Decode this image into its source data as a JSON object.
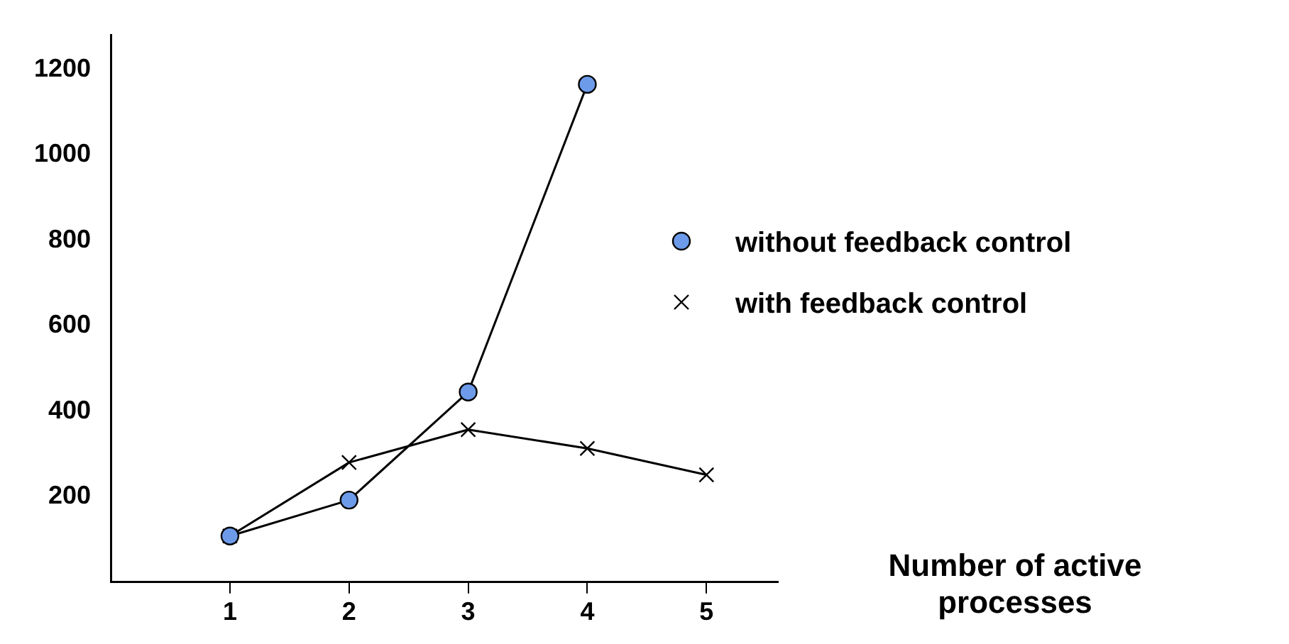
{
  "chart_data": {
    "type": "line",
    "xlabel": "Number of active processes",
    "x": [
      1,
      2,
      3,
      4,
      5
    ],
    "xlim": [
      0,
      5.6
    ],
    "xticks": [
      1,
      2,
      3,
      4,
      5
    ],
    "ylim": [
      0,
      1280
    ],
    "yticks": [
      200,
      400,
      600,
      800,
      1000,
      1200
    ],
    "grid": false,
    "legend": "right",
    "series": [
      {
        "name": "without feedback control",
        "color": "#000000",
        "values": [
          108,
          192,
          445,
          1165,
          null
        ],
        "marker": "circle"
      },
      {
        "name": "with feedback control",
        "color": "#000000",
        "values": [
          108,
          280,
          357,
          313,
          251
        ],
        "marker": "cross"
      }
    ]
  }
}
